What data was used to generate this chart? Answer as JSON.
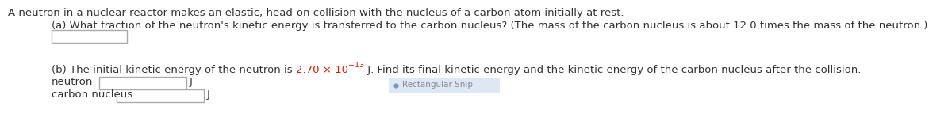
{
  "bg_color": "#ffffff",
  "main_text": "A neutron in a nuclear reactor makes an elastic, head-on collision with the nucleus of a carbon atom initially at rest.",
  "part_a_label": "(a) What fraction of the neutron's kinetic energy is transferred to the carbon nucleus? (The mass of the carbon nucleus is about 12.0 times the mass of the neutron.)",
  "part_b_prefix": "(b) The initial kinetic energy of the neutron is ",
  "part_b_value": "2.70 × 10",
  "part_b_exp": "−13",
  "part_b_end": " J. Find its final kinetic energy and the kinetic energy of the carbon nucleus after the collision.",
  "neutron_label": "neutron",
  "carbon_label": "carbon nucleus",
  "unit_j": "J",
  "rect_snip_text": "Rectangular Snip",
  "text_color": "#333333",
  "highlight_color": "#cc2200",
  "snip_bg": "#dde8f4",
  "snip_text_color": "#888899",
  "snip_dot_color": "#7799bb",
  "box_edge_color": "#aaaaaa",
  "font_size": 9.5,
  "snip_font_size": 7.5
}
